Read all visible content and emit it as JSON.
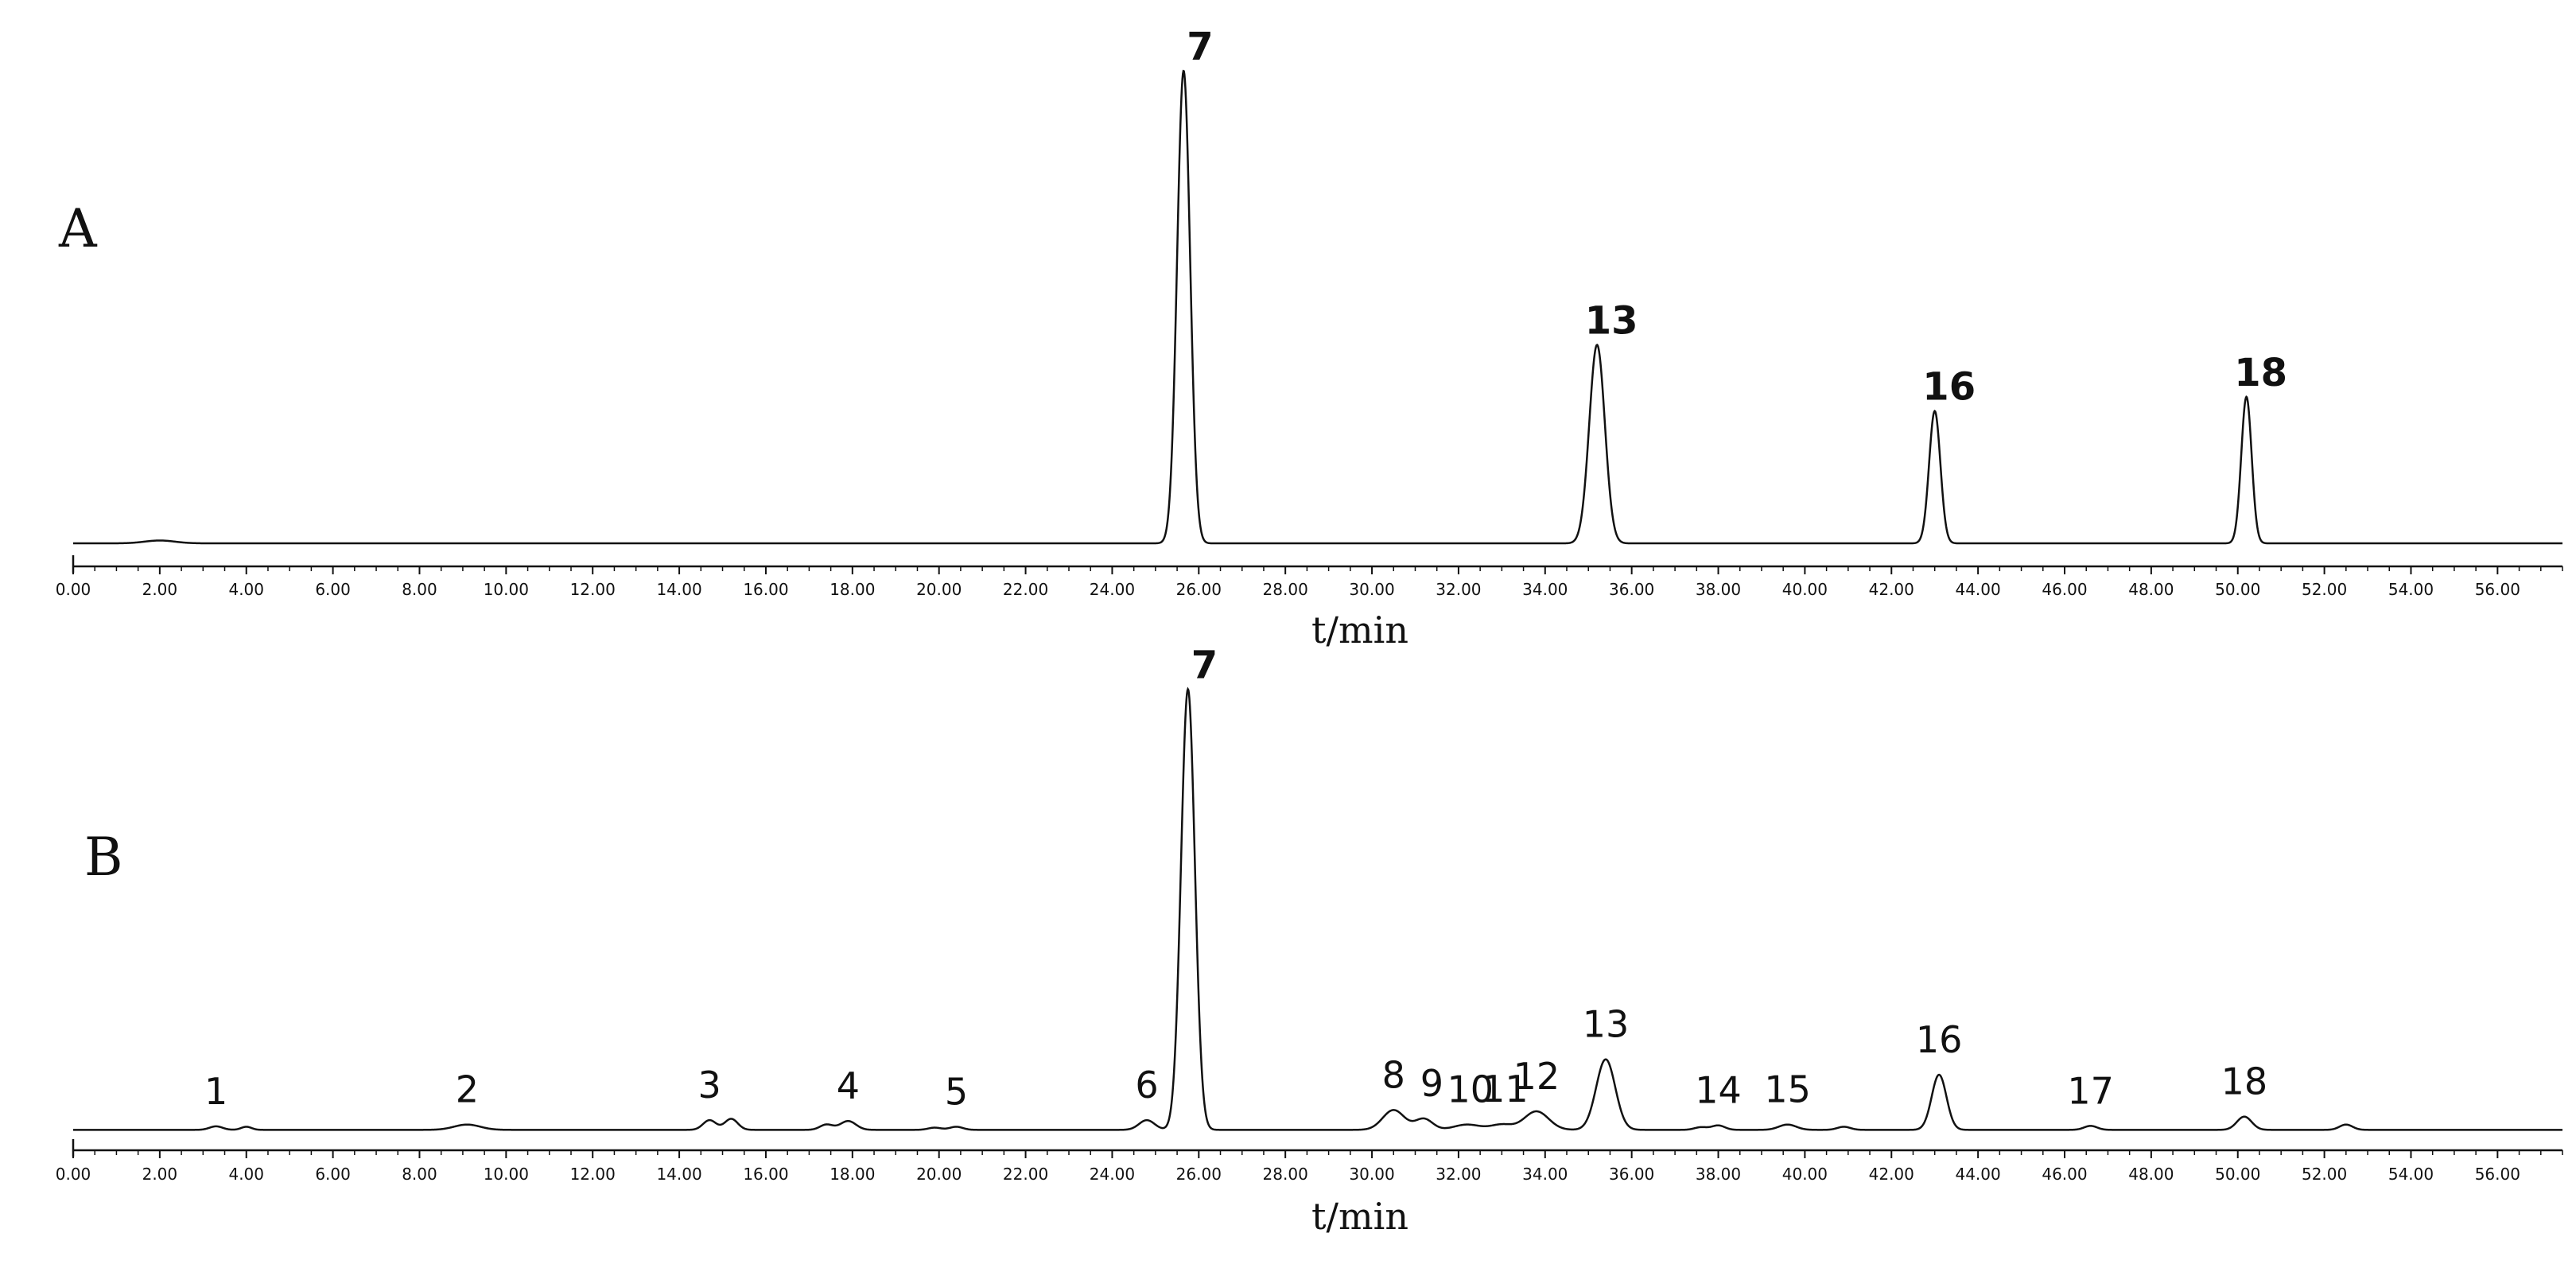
{
  "chart_data": [
    {
      "type": "line",
      "panel_label": "A",
      "xlabel": "t/min",
      "ylabel": "",
      "xlim": [
        0,
        57.5
      ],
      "ylim": [
        0,
        1
      ],
      "x_tick_labels": [
        "0.00",
        "2.00",
        "4.00",
        "6.00",
        "8.00",
        "10.00",
        "12.00",
        "14.00",
        "16.00",
        "18.00",
        "20.00",
        "22.00",
        "24.00",
        "26.00",
        "28.00",
        "30.00",
        "32.00",
        "34.00",
        "36.00",
        "38.00",
        "40.00",
        "42.00",
        "44.00",
        "46.00",
        "48.00",
        "50.00",
        "52.00",
        "54.00",
        "56.00"
      ],
      "baseline": 0.005,
      "peaks": [
        {
          "label": "",
          "x": 2.0,
          "height": 0.006,
          "width": 0.35
        },
        {
          "label": "7",
          "x": 25.65,
          "height": 1.0,
          "width": 0.15
        },
        {
          "label": "13",
          "x": 35.2,
          "height": 0.42,
          "width": 0.18
        },
        {
          "label": "16",
          "x": 43.0,
          "height": 0.28,
          "width": 0.13
        },
        {
          "label": "18",
          "x": 50.2,
          "height": 0.31,
          "width": 0.12
        }
      ]
    },
    {
      "type": "line",
      "panel_label": "B",
      "xlabel": "t/min",
      "ylabel": "",
      "xlim": [
        0,
        57.5
      ],
      "ylim": [
        0,
        1
      ],
      "x_tick_labels": [
        "0.00",
        "2.00",
        "4.00",
        "6.00",
        "8.00",
        "10.00",
        "12.00",
        "14.00",
        "16.00",
        "18.00",
        "20.00",
        "22.00",
        "24.00",
        "26.00",
        "28.00",
        "30.00",
        "32.00",
        "34.00",
        "36.00",
        "38.00",
        "40.00",
        "42.00",
        "44.00",
        "46.00",
        "48.00",
        "50.00",
        "52.00",
        "54.00",
        "56.00"
      ],
      "baseline": 0.003,
      "peaks": [
        {
          "label": "1",
          "x": 3.3,
          "height": 0.008,
          "width": 0.15
        },
        {
          "label": "",
          "x": 4.0,
          "height": 0.007,
          "width": 0.12
        },
        {
          "label": "2",
          "x": 9.1,
          "height": 0.012,
          "width": 0.3
        },
        {
          "label": "3",
          "x": 14.7,
          "height": 0.022,
          "width": 0.15
        },
        {
          "label": "",
          "x": 15.2,
          "height": 0.025,
          "width": 0.15
        },
        {
          "label": "",
          "x": 17.4,
          "height": 0.012,
          "width": 0.15
        },
        {
          "label": "4",
          "x": 17.9,
          "height": 0.02,
          "width": 0.18
        },
        {
          "label": "",
          "x": 19.9,
          "height": 0.005,
          "width": 0.15
        },
        {
          "label": "5",
          "x": 20.4,
          "height": 0.007,
          "width": 0.15
        },
        {
          "label": "6",
          "x": 24.8,
          "height": 0.022,
          "width": 0.18
        },
        {
          "label": "7",
          "x": 25.75,
          "height": 1.0,
          "width": 0.16
        },
        {
          "label": "8",
          "x": 30.5,
          "height": 0.045,
          "width": 0.25
        },
        {
          "label": "9",
          "x": 31.2,
          "height": 0.025,
          "width": 0.2
        },
        {
          "label": "10",
          "x": 32.2,
          "height": 0.012,
          "width": 0.3
        },
        {
          "label": "11",
          "x": 33.0,
          "height": 0.012,
          "width": 0.25
        },
        {
          "label": "12",
          "x": 33.8,
          "height": 0.042,
          "width": 0.28
        },
        {
          "label": "13",
          "x": 35.4,
          "height": 0.16,
          "width": 0.22
        },
        {
          "label": "",
          "x": 37.6,
          "height": 0.006,
          "width": 0.15
        },
        {
          "label": "14",
          "x": 38.0,
          "height": 0.01,
          "width": 0.15
        },
        {
          "label": "15",
          "x": 39.6,
          "height": 0.012,
          "width": 0.2
        },
        {
          "label": "",
          "x": 40.9,
          "height": 0.007,
          "width": 0.15
        },
        {
          "label": "16",
          "x": 43.1,
          "height": 0.125,
          "width": 0.17
        },
        {
          "label": "17",
          "x": 46.6,
          "height": 0.009,
          "width": 0.15
        },
        {
          "label": "18",
          "x": 50.15,
          "height": 0.03,
          "width": 0.17
        },
        {
          "label": "",
          "x": 52.5,
          "height": 0.012,
          "width": 0.15
        }
      ]
    }
  ]
}
